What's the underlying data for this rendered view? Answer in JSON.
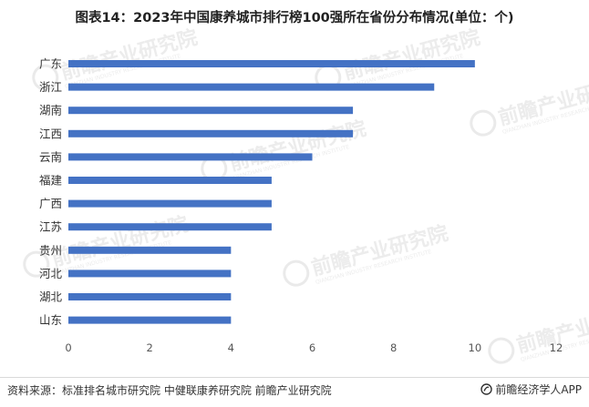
{
  "chart_data": {
    "type": "bar",
    "orientation": "horizontal",
    "title": "图表14：2023年中国康养城市排行榜100强所在省份分布情况(单位：个)",
    "categories": [
      "广东",
      "浙江",
      "湖南",
      "江西",
      "云南",
      "福建",
      "广西",
      "江苏",
      "贵州",
      "河北",
      "湖北",
      "山东"
    ],
    "values": [
      10,
      9,
      7,
      7,
      6,
      5,
      5,
      5,
      4,
      4,
      4,
      4
    ],
    "xlim": [
      0,
      12
    ],
    "xticks": [
      0,
      2,
      4,
      6,
      8,
      10,
      12
    ],
    "xlabel": "",
    "ylabel": "",
    "grid": false,
    "legend": "none",
    "bar_color": "#4472c4"
  },
  "footer": {
    "source": "资料来源：标准排名城市研究院 中健联康养研究院 前瞻产业研究院",
    "brand": "前瞻经济学人APP",
    "brand_icon": "qianzhan-logo-icon"
  },
  "watermark": {
    "text": "前瞻产业研究院",
    "sub_text": "QIANZHAN INDUSTRY RESEARCH INSTITUTE"
  }
}
